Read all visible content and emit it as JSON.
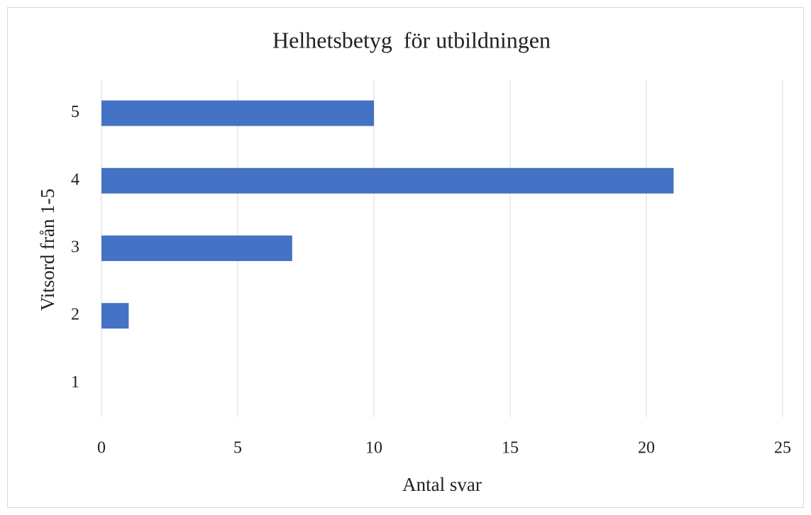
{
  "chart_data": {
    "type": "bar",
    "orientation": "horizontal",
    "title": "Helhetsbetyg  för utbildningen",
    "xlabel": "Antal svar",
    "ylabel": "Vitsord från 1-5",
    "categories": [
      "1",
      "2",
      "3",
      "4",
      "5"
    ],
    "values": [
      0,
      1,
      7,
      21,
      10
    ],
    "color": "#4472c4",
    "xlim": [
      0,
      25
    ],
    "xticks": [
      0,
      5,
      10,
      15,
      20,
      25
    ],
    "grid": true
  }
}
